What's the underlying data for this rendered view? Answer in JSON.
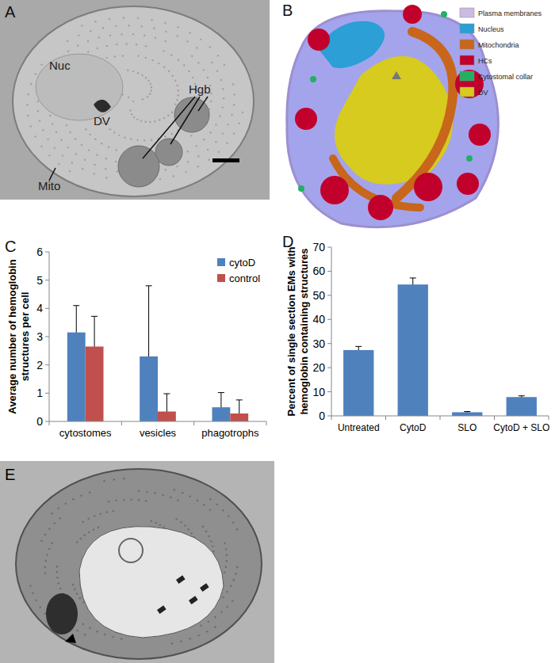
{
  "chart_data": [
    {
      "type": "bar",
      "ylabel": "Average number of hemoglobin structures per cell",
      "categories": [
        "cytostomes",
        "vesicles",
        "phagotrophs"
      ],
      "series": [
        {
          "name": "cytoD",
          "color": "#4f81bd",
          "values": [
            3.15,
            2.3,
            0.5
          ],
          "errors": [
            0.95,
            2.5,
            0.52
          ]
        },
        {
          "name": "control",
          "color": "#c0504d",
          "values": [
            2.65,
            0.35,
            0.28
          ],
          "errors": [
            1.07,
            0.63,
            0.48
          ]
        }
      ],
      "ylim": [
        0,
        6
      ],
      "yticks": [
        0,
        1,
        2,
        3,
        4,
        5,
        6
      ],
      "legend": "top-right",
      "grid": false
    },
    {
      "type": "bar",
      "ylabel": "Percent of single section EMs with hemoglobin containing structures",
      "categories": [
        "Untreated",
        "CytoD",
        "SLO",
        "CytoD + SLO"
      ],
      "values": [
        27.3,
        54.5,
        1.5,
        7.8
      ],
      "errors": [
        1.5,
        2.7,
        0.3,
        0.5
      ],
      "color": "#4f81bd",
      "ylim": [
        0,
        70
      ],
      "yticks": [
        0,
        10,
        20,
        30,
        40,
        50,
        60,
        70
      ],
      "grid": false
    }
  ],
  "panels": {
    "letters": [
      "A",
      "B",
      "C",
      "D",
      "E"
    ],
    "a_labels": [
      "Nuc",
      "DV",
      "Hgb",
      "Mito"
    ],
    "b_legend": [
      {
        "name": "Plasma membranes",
        "color": "#cbbbe2"
      },
      {
        "name": "Nucleus",
        "color": "#2b9fd6"
      },
      {
        "name": "Mitochondria",
        "color": "#c8661c"
      },
      {
        "name": "HCs",
        "color": "#c2002c"
      },
      {
        "name": "Cytostomal collar",
        "color": "#22b062"
      },
      {
        "name": "DV",
        "color": "#d6cb1e"
      }
    ]
  }
}
